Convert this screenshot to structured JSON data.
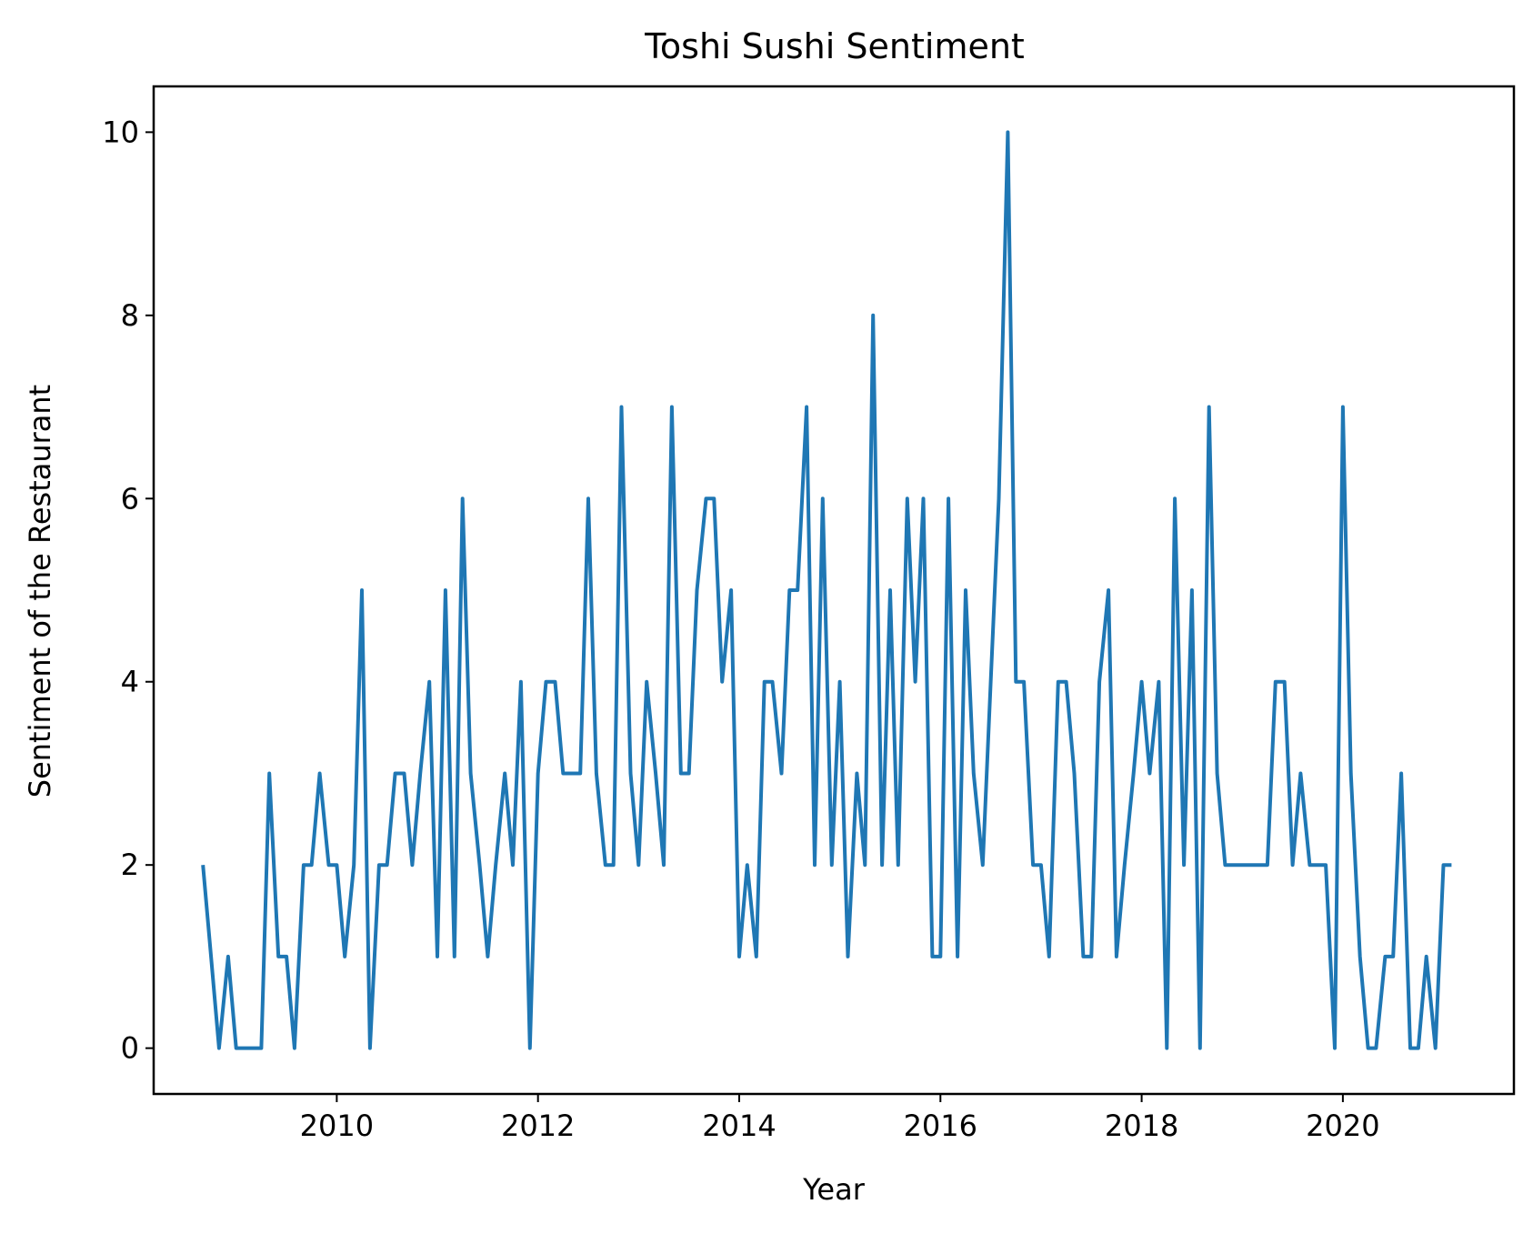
{
  "chart_data": {
    "type": "line",
    "title": "Toshi Sushi Sentiment",
    "xlabel": "Year",
    "ylabel": "Sentiment of the Restaurant",
    "xlim": [
      2008.18,
      2021.7
    ],
    "ylim": [
      -0.5,
      10.5
    ],
    "x_ticks": [
      2010,
      2012,
      2014,
      2016,
      2018,
      2020
    ],
    "y_ticks": [
      0,
      2,
      4,
      6,
      8,
      10
    ],
    "grid": false,
    "line_color": "#1f77b4",
    "series": [
      {
        "x": [
          2008.67,
          2008.75,
          2008.83,
          2008.92,
          2009.0,
          2009.08,
          2009.17,
          2009.25,
          2009.33,
          2009.42,
          2009.5,
          2009.58,
          2009.67,
          2009.75,
          2009.83,
          2009.92,
          2010.0,
          2010.08,
          2010.17,
          2010.25,
          2010.33,
          2010.42,
          2010.5,
          2010.58,
          2010.67,
          2010.75,
          2010.83,
          2010.92,
          2011.0,
          2011.08,
          2011.17,
          2011.25,
          2011.33,
          2011.42,
          2011.5,
          2011.58,
          2011.67,
          2011.75,
          2011.83,
          2011.92,
          2012.0,
          2012.08,
          2012.17,
          2012.25,
          2012.33,
          2012.42,
          2012.5,
          2012.58,
          2012.67,
          2012.75,
          2012.83,
          2012.92,
          2013.0,
          2013.08,
          2013.17,
          2013.25,
          2013.33,
          2013.42,
          2013.5,
          2013.58,
          2013.67,
          2013.75,
          2013.83,
          2013.92,
          2014.0,
          2014.08,
          2014.17,
          2014.25,
          2014.33,
          2014.42,
          2014.5,
          2014.58,
          2014.67,
          2014.75,
          2014.83,
          2014.92,
          2015.0,
          2015.08,
          2015.17,
          2015.25,
          2015.33,
          2015.42,
          2015.5,
          2015.58,
          2015.67,
          2015.75,
          2015.83,
          2015.92,
          2016.0,
          2016.08,
          2016.17,
          2016.25,
          2016.33,
          2016.42,
          2016.5,
          2016.58,
          2016.67,
          2016.75,
          2016.83,
          2016.92,
          2017.0,
          2017.08,
          2017.17,
          2017.25,
          2017.33,
          2017.42,
          2017.5,
          2017.58,
          2017.67,
          2017.75,
          2017.83,
          2017.92,
          2018.0,
          2018.08,
          2018.17,
          2018.25,
          2018.33,
          2018.42,
          2018.5,
          2018.58,
          2018.67,
          2018.75,
          2018.83,
          2018.92,
          2019.0,
          2019.08,
          2019.17,
          2019.25,
          2019.33,
          2019.42,
          2019.5,
          2019.58,
          2019.67,
          2019.75,
          2019.83,
          2019.92,
          2020.0,
          2020.08,
          2020.17,
          2020.25,
          2020.33,
          2020.42,
          2020.5,
          2020.58,
          2020.67,
          2020.75,
          2020.83,
          2020.92,
          2021.0,
          2021.08
        ],
        "values": [
          2,
          1,
          0,
          1,
          0,
          0,
          0,
          0,
          3,
          1,
          1,
          0,
          2,
          2,
          3,
          2,
          2,
          1,
          2,
          5,
          0,
          2,
          2,
          3,
          3,
          2,
          3,
          4,
          1,
          5,
          1,
          6,
          3,
          2,
          1,
          2,
          3,
          2,
          4,
          0,
          3,
          4,
          4,
          3,
          3,
          3,
          6,
          3,
          2,
          2,
          7,
          3,
          2,
          4,
          3,
          2,
          7,
          3,
          3,
          5,
          6,
          6,
          4,
          5,
          1,
          2,
          1,
          4,
          4,
          3,
          5,
          5,
          7,
          2,
          6,
          2,
          4,
          1,
          3,
          2,
          8,
          2,
          5,
          2,
          6,
          4,
          6,
          1,
          1,
          6,
          1,
          5,
          3,
          2,
          4,
          6,
          10,
          4,
          4,
          2,
          2,
          1,
          4,
          4,
          3,
          1,
          1,
          4,
          5,
          1,
          2,
          3,
          4,
          3,
          4,
          0,
          6,
          2,
          5,
          0,
          7,
          3,
          2,
          2,
          2,
          2,
          2,
          2,
          4,
          4,
          2,
          3,
          2,
          2,
          2,
          0,
          7,
          3,
          1,
          0,
          0,
          1,
          1,
          3,
          0,
          0,
          1,
          0,
          2,
          2
        ]
      }
    ]
  }
}
